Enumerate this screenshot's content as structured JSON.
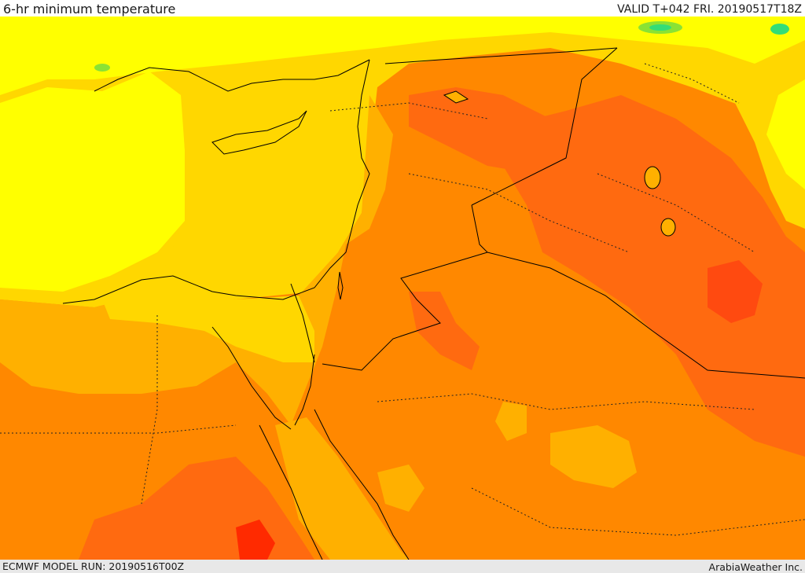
{
  "header": {
    "title": "6-hr minimum temperature",
    "valid": "VALID T+042 FRI. 20190517T18Z"
  },
  "footer": {
    "model_run": "ECMWF MODEL RUN: 20190516T00Z",
    "credit": "ArabiaWeather Inc."
  },
  "palette": {
    "pale_yellow": "#ffff00",
    "yellow": "#ffd700",
    "light_orange": "#ffb000",
    "orange": "#ff8800",
    "dark_orange": "#ff6a10",
    "red_orange": "#ff4a10",
    "red": "#ff2a00",
    "green": "#8ae234",
    "cyan_green": "#33dd77"
  }
}
